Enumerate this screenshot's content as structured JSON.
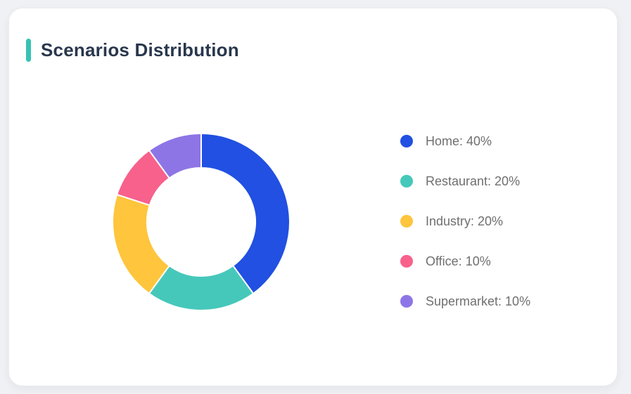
{
  "page": {
    "background_color": "#f0f1f4"
  },
  "card": {
    "background_color": "#ffffff",
    "title": "Scenarios Distribution",
    "title_color": "#29374d",
    "accent_color": "#36c3b4"
  },
  "chart_data": {
    "type": "pie",
    "variant": "donut",
    "title": "Scenarios Distribution",
    "start_angle_deg": 0,
    "direction": "clockwise",
    "inner_radius_ratio": 0.61,
    "legend_position": "right",
    "legend_text_color": "#6f6f6f",
    "separator_color": "#ffffff",
    "categories": [
      "Home",
      "Restaurant",
      "Industry",
      "Office",
      "Supermarket"
    ],
    "values": [
      40,
      20,
      20,
      10,
      10
    ],
    "segments": [
      {
        "label": "Home",
        "value_pct": 40,
        "color": "#2150e2",
        "legend_label": "Home: 40%"
      },
      {
        "label": "Restaurant",
        "value_pct": 20,
        "color": "#45c8ba",
        "legend_label": "Restaurant: 20%"
      },
      {
        "label": "Industry",
        "value_pct": 20,
        "color": "#fec53d",
        "legend_label": "Industry: 20%"
      },
      {
        "label": "Office",
        "value_pct": 10,
        "color": "#f7618c",
        "legend_label": "Office: 10%"
      },
      {
        "label": "Supermarket",
        "value_pct": 10,
        "color": "#8e75e6",
        "legend_label": "Supermarket: 10%"
      }
    ]
  }
}
